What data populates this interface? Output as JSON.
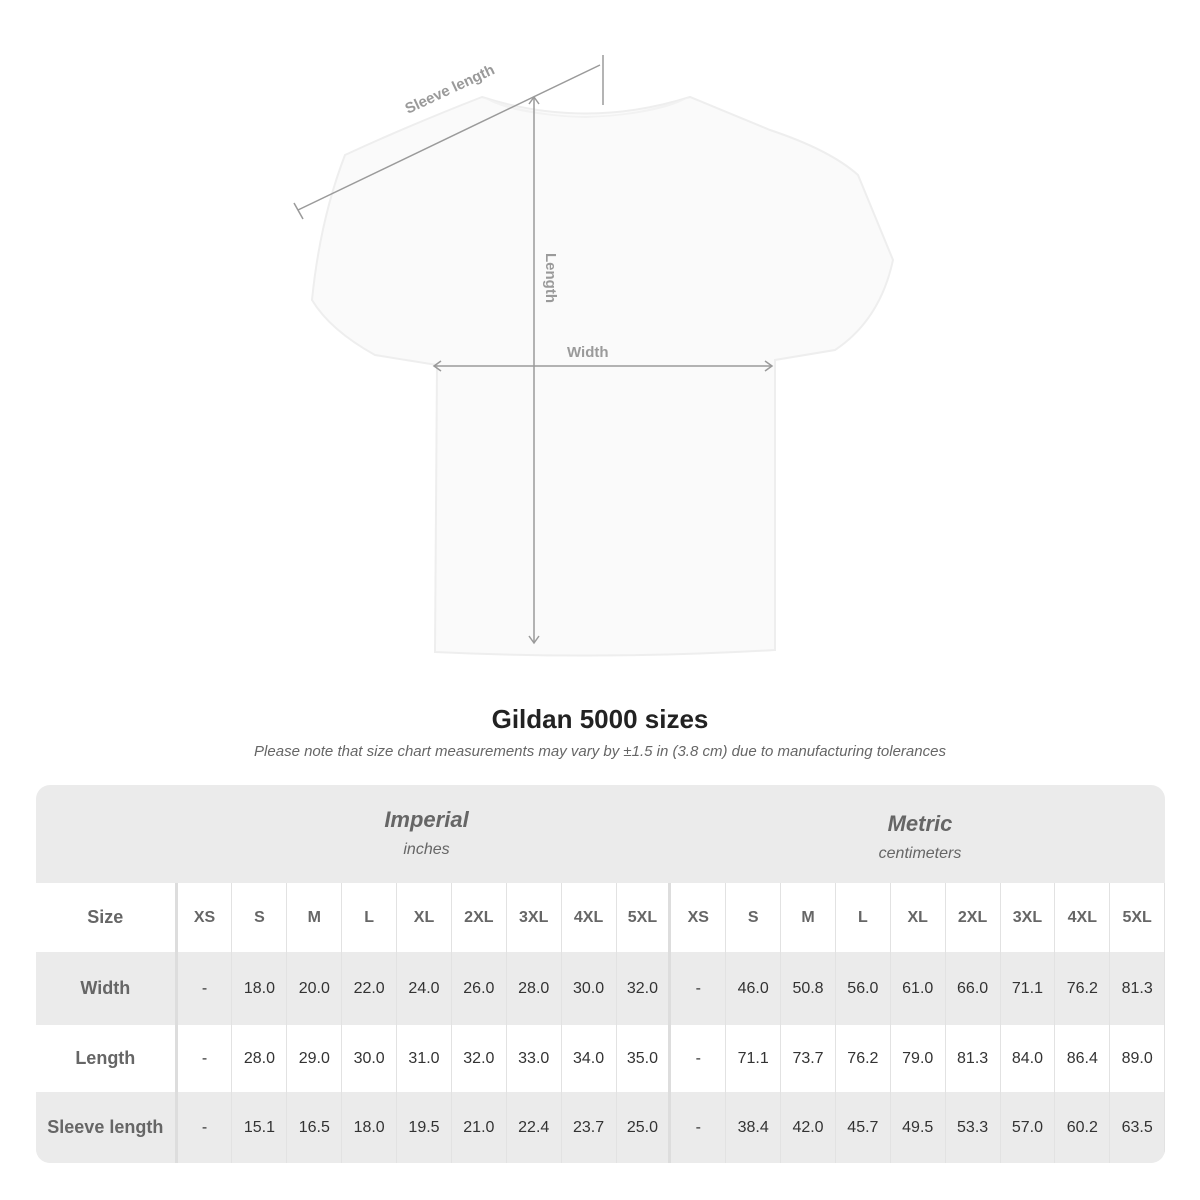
{
  "diagram": {
    "labels": {
      "sleeve": "Sleeve length",
      "length": "Length",
      "width": "Width"
    },
    "colors": {
      "shirt": "#fafafa",
      "measure_line": "#9a9a9a"
    }
  },
  "title": "Gildan 5000 sizes",
  "subtitle": "Please note that size chart measurements may vary by ±1.5 in (3.8 cm) due to manufacturing tolerances",
  "table": {
    "imperial": {
      "name": "Imperial",
      "unit": "inches"
    },
    "metric": {
      "name": "Metric",
      "unit": "centimeters"
    },
    "header_label": "Size",
    "sizes": [
      "XS",
      "S",
      "M",
      "L",
      "XL",
      "2XL",
      "3XL",
      "4XL",
      "5XL"
    ],
    "rows": [
      {
        "label": "Width",
        "imperial": [
          "-",
          "18.0",
          "20.0",
          "22.0",
          "24.0",
          "26.0",
          "28.0",
          "30.0",
          "32.0"
        ],
        "metric": [
          "-",
          "46.0",
          "50.8",
          "56.0",
          "61.0",
          "66.0",
          "71.1",
          "76.2",
          "81.3"
        ]
      },
      {
        "label": "Length",
        "imperial": [
          "-",
          "28.0",
          "29.0",
          "30.0",
          "31.0",
          "32.0",
          "33.0",
          "34.0",
          "35.0"
        ],
        "metric": [
          "-",
          "71.1",
          "73.7",
          "76.2",
          "79.0",
          "81.3",
          "84.0",
          "86.4",
          "89.0"
        ]
      },
      {
        "label": "Sleeve length",
        "imperial": [
          "-",
          "15.1",
          "16.5",
          "18.0",
          "19.5",
          "21.0",
          "22.4",
          "23.7",
          "25.0"
        ],
        "metric": [
          "-",
          "38.4",
          "42.0",
          "45.7",
          "49.5",
          "53.3",
          "57.0",
          "60.2",
          "63.5"
        ]
      }
    ]
  }
}
